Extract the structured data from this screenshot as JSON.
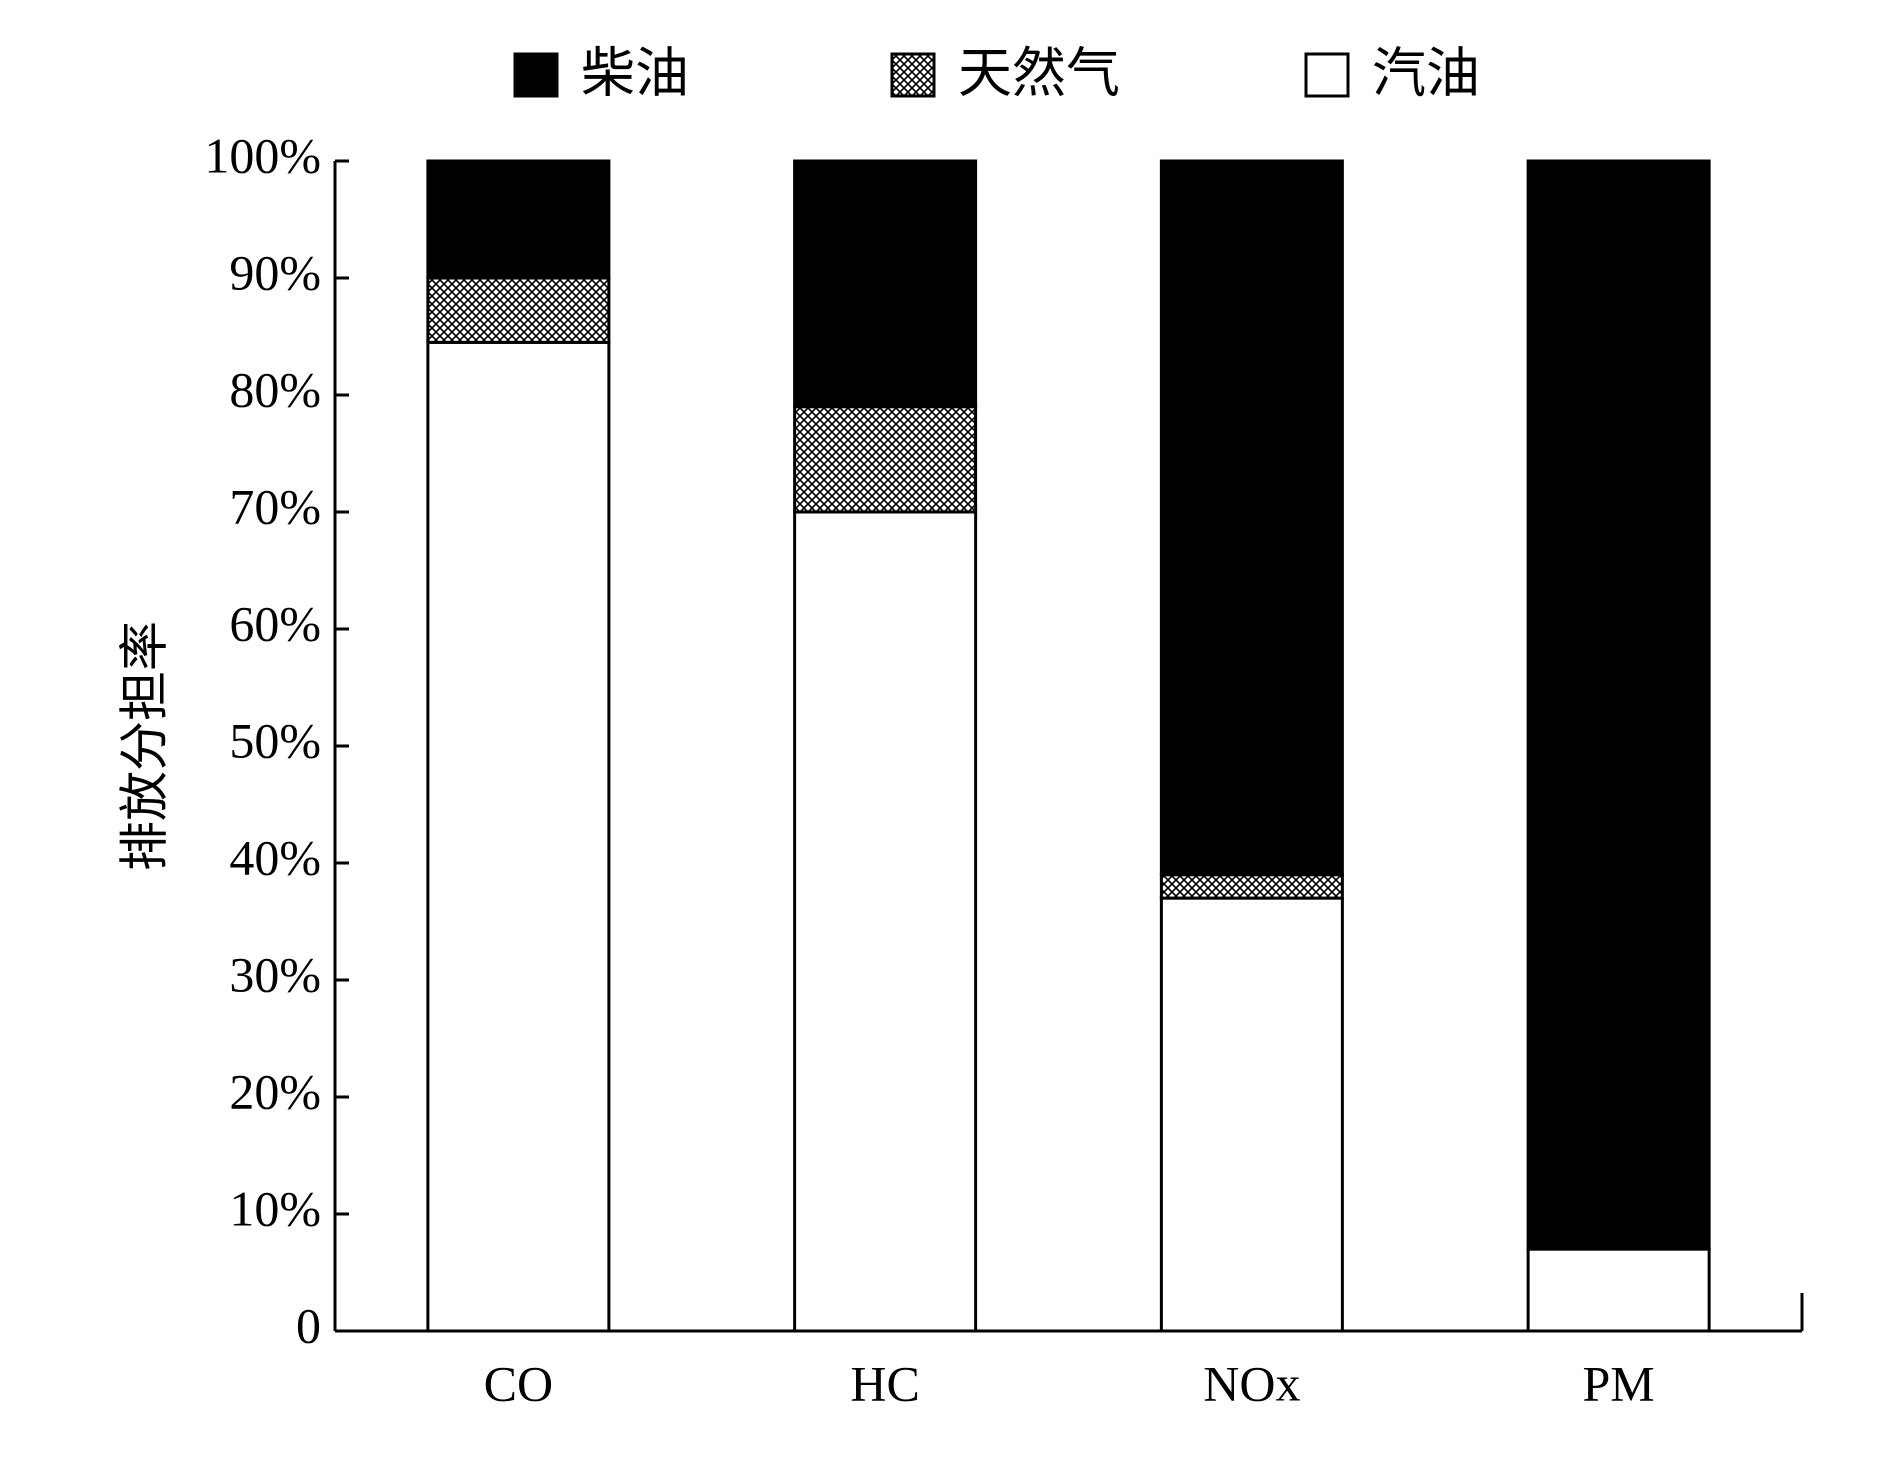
{
  "chart_data": {
    "type": "stacked_bar",
    "ylabel": "排放分担率",
    "categories": [
      "CO",
      "HC",
      "NOx",
      "PM"
    ],
    "series": [
      {
        "name": "柴油",
        "color": "#000000",
        "values": [
          10,
          21,
          61,
          93
        ]
      },
      {
        "name": "天然气",
        "color": "#000000",
        "pattern": "crosshatch",
        "values": [
          5.5,
          9,
          2,
          0
        ]
      },
      {
        "name": "汽油",
        "color": "#ffffff",
        "values": [
          84.5,
          70,
          37,
          7
        ]
      }
    ],
    "ylim": [
      0,
      100
    ],
    "yticks": [
      0,
      {
        "value": 10,
        "label": "10%"
      },
      {
        "value": 20,
        "label": "20%"
      },
      {
        "value": 30,
        "label": "30%"
      },
      {
        "value": 40,
        "label": "40%"
      },
      {
        "value": 50,
        "label": "50%"
      },
      {
        "value": 60,
        "label": "60%"
      },
      {
        "value": 70,
        "label": "70%"
      },
      {
        "value": 80,
        "label": "80%"
      },
      {
        "value": 90,
        "label": "90%"
      },
      {
        "value": 100,
        "label": "100%"
      }
    ],
    "legend": "top"
  }
}
